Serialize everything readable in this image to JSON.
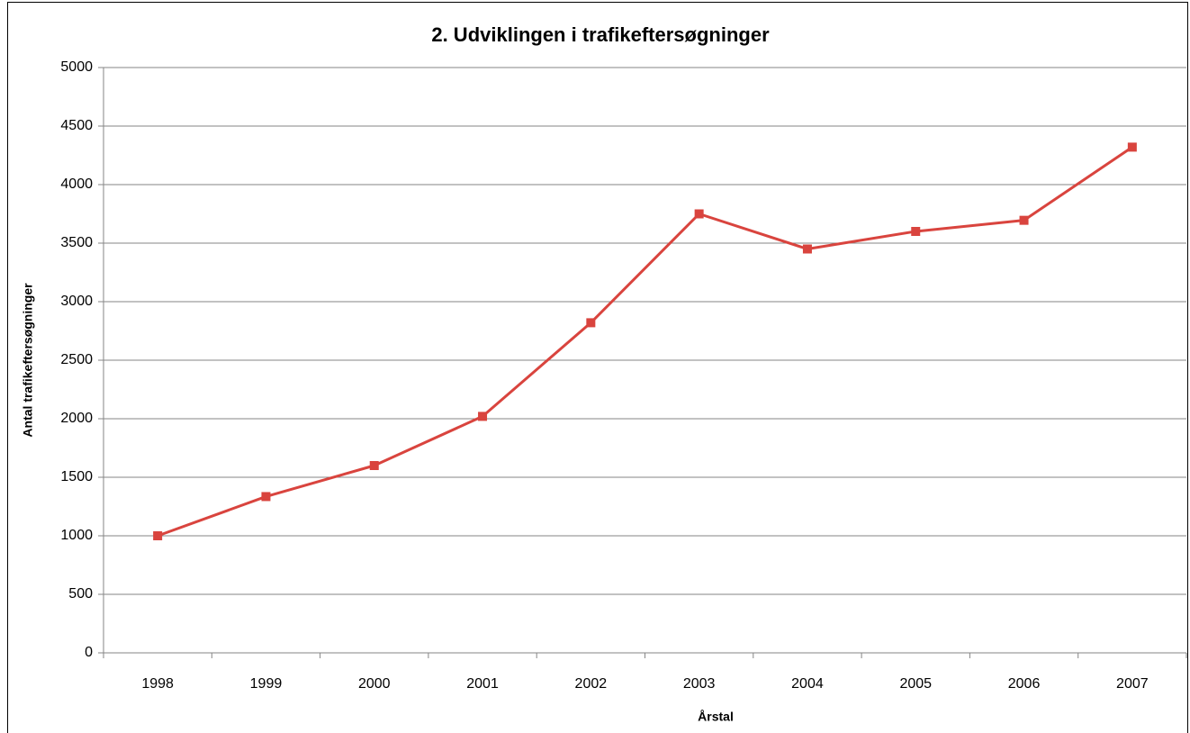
{
  "chart_data": {
    "type": "line",
    "title": "2. Udviklingen i trafikeftersøgninger",
    "x_label": "Årstal",
    "y_label": "Antal trafikeftersøgninger",
    "categories": [
      "1998",
      "1999",
      "2000",
      "2001",
      "2002",
      "2003",
      "2004",
      "2005",
      "2006",
      "2007"
    ],
    "series": [
      {
        "name": "Antal trafikeftersøgninger",
        "color": "#d9443e",
        "values": [
          1000,
          1335,
          1600,
          2020,
          2820,
          3750,
          3450,
          3600,
          3695,
          4320
        ]
      }
    ],
    "ylim": [
      0,
      5000
    ],
    "yticks": [
      0,
      500,
      1000,
      1500,
      2000,
      2500,
      3000,
      3500,
      4000,
      4500,
      5000
    ],
    "grid": true
  }
}
